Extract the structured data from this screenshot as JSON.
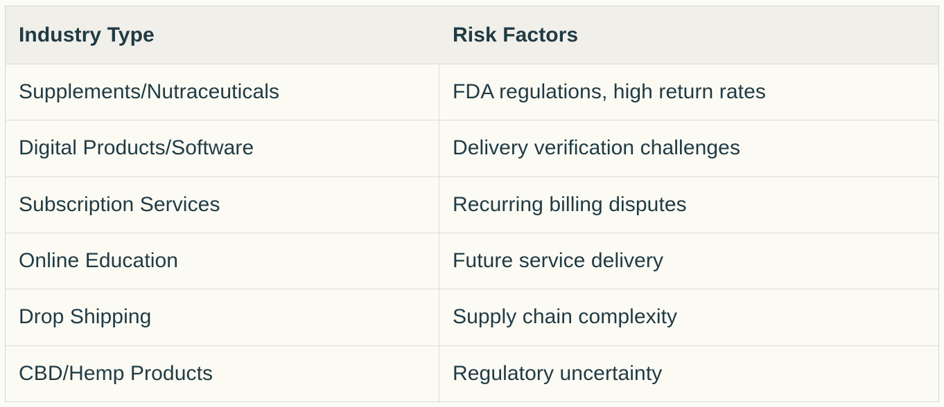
{
  "table": {
    "headers": [
      {
        "label": "Industry Type"
      },
      {
        "label": "Risk Factors"
      }
    ],
    "rows": [
      {
        "industry": "Supplements/Nutraceuticals",
        "risk": "FDA regulations, high return rates"
      },
      {
        "industry": "Digital Products/Software",
        "risk": "Delivery verification challenges"
      },
      {
        "industry": "Subscription Services",
        "risk": "Recurring billing disputes"
      },
      {
        "industry": "Online Education",
        "risk": "Future service delivery"
      },
      {
        "industry": "Drop Shipping",
        "risk": "Supply chain complexity"
      },
      {
        "industry": "CBD/Hemp Products",
        "risk": "Regulatory uncertainty"
      }
    ]
  },
  "chart_data": {
    "type": "table",
    "columns": [
      "Industry Type",
      "Risk Factors"
    ],
    "rows": [
      [
        "Supplements/Nutraceuticals",
        "FDA regulations, high return rates"
      ],
      [
        "Digital Products/Software",
        "Delivery verification challenges"
      ],
      [
        "Subscription Services",
        "Recurring billing disputes"
      ],
      [
        "Online Education",
        "Future service delivery"
      ],
      [
        "Drop Shipping",
        "Supply chain complexity"
      ],
      [
        "CBD/Hemp Products",
        "Regulatory uncertainty"
      ]
    ]
  },
  "colors": {
    "page_background": "#fcfcf6",
    "header_background": "#f0efe9",
    "row_background": "#fbfaf3",
    "border": "#d8d7d0",
    "text": "#1f3a44"
  }
}
